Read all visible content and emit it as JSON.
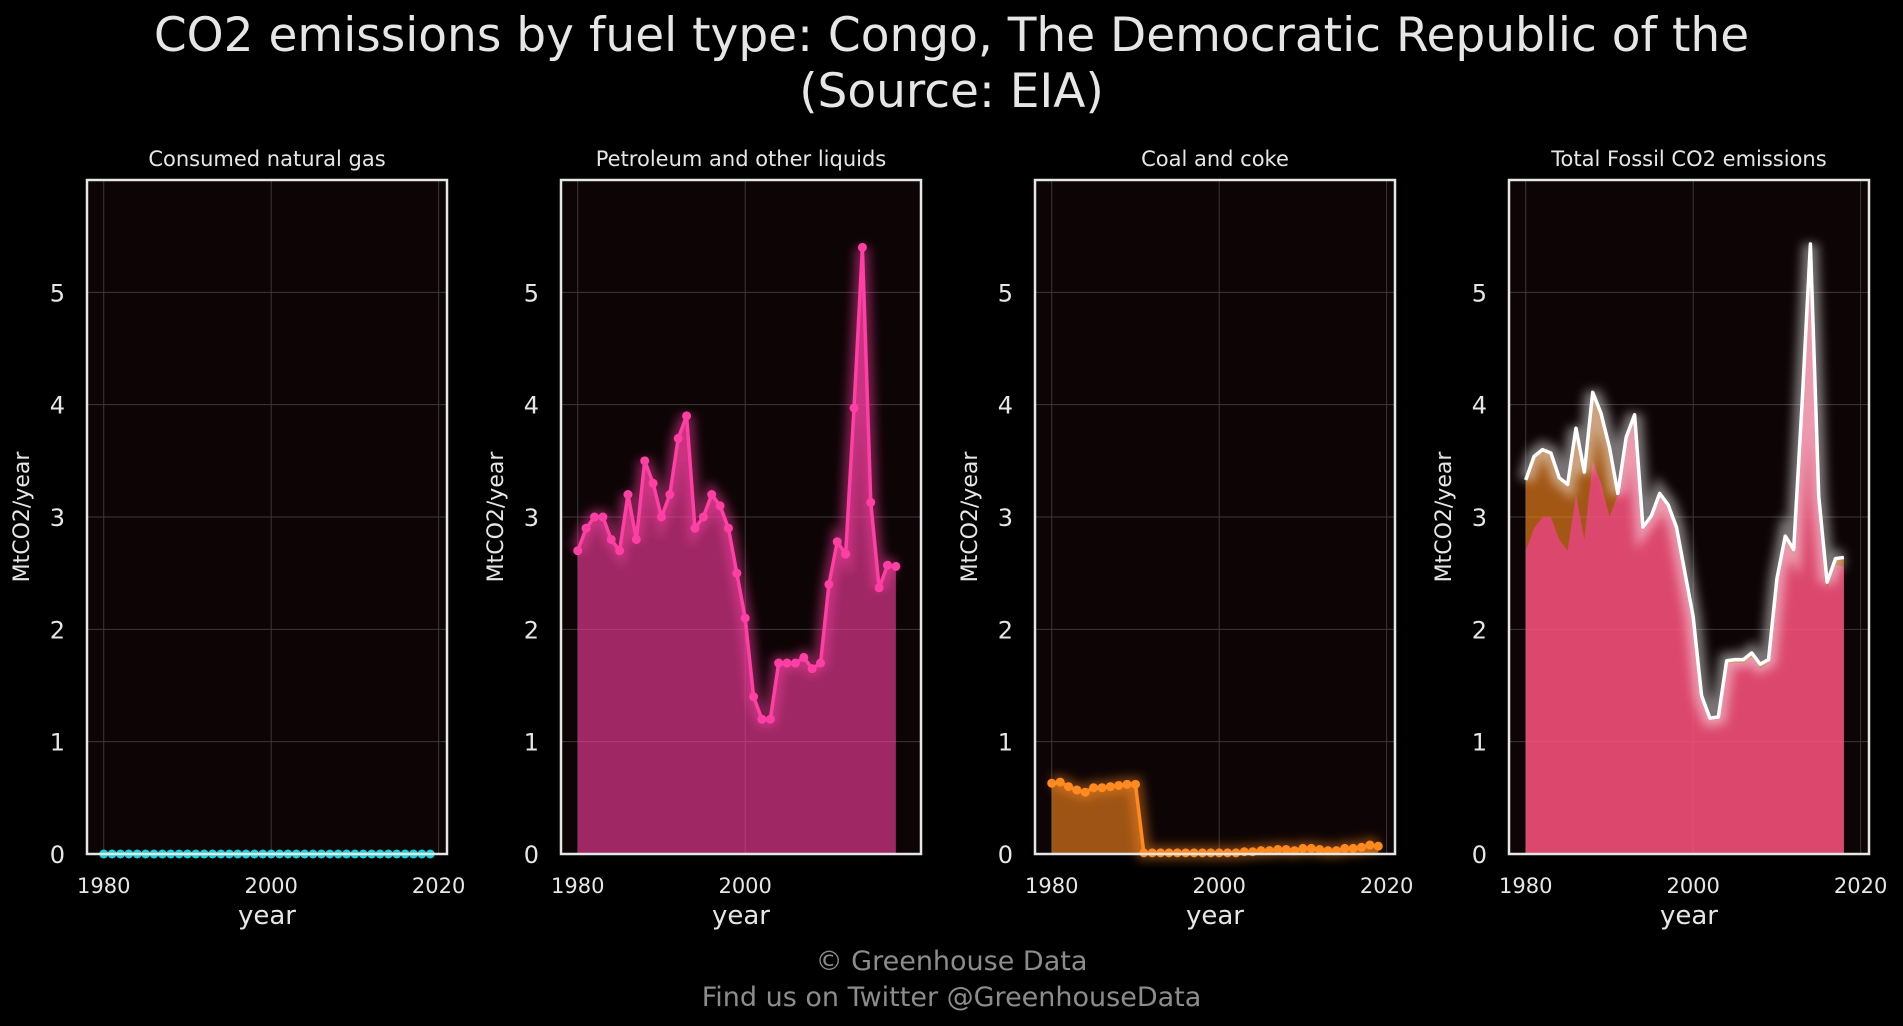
{
  "title_line1": "CO2 emissions by fuel type: Congo, The Democratic Republic of the",
  "title_line2": "(Source: EIA)",
  "footer_line1": "© Greenhouse Data",
  "footer_line2": "Find us on Twitter @GreenhouseData",
  "colors": {
    "background": "#000000",
    "panel_bg": "#0d0405",
    "grid": "#3a3a3a",
    "frame": "#e6e6e6",
    "gas": "#19d3d9",
    "petroleum": "#ff3fa4",
    "coal": "#ff8a1f",
    "total": "#ffffff"
  },
  "chart_data": [
    {
      "type": "line",
      "title": "Consumed natural gas",
      "xlabel": "year",
      "ylabel": "MtCO2/year",
      "xlim": [
        1978,
        2021
      ],
      "ylim": [
        0,
        6
      ],
      "xticks": [
        "1980",
        "2000",
        "2020"
      ],
      "yticks": [
        "0",
        "1",
        "2",
        "3",
        "4",
        "5"
      ],
      "grid": true,
      "series": [
        {
          "color": "#19d3d9",
          "x": [
            1980,
            1981,
            1982,
            1983,
            1984,
            1985,
            1986,
            1987,
            1988,
            1989,
            1990,
            1991,
            1992,
            1993,
            1994,
            1995,
            1996,
            1997,
            1998,
            1999,
            2000,
            2001,
            2002,
            2003,
            2004,
            2005,
            2006,
            2007,
            2008,
            2009,
            2010,
            2011,
            2012,
            2013,
            2014,
            2015,
            2016,
            2017,
            2018,
            2019
          ],
          "values": [
            0,
            0,
            0,
            0,
            0,
            0,
            0,
            0,
            0,
            0,
            0,
            0,
            0,
            0,
            0,
            0,
            0,
            0,
            0,
            0,
            0,
            0,
            0,
            0,
            0,
            0,
            0,
            0,
            0,
            0,
            0,
            0,
            0,
            0,
            0,
            0,
            0,
            0,
            0,
            0
          ]
        }
      ]
    },
    {
      "type": "line",
      "title": "Petroleum and other liquids",
      "xlabel": "year",
      "ylabel": "MtCO2/year",
      "xlim": [
        1978,
        2021
      ],
      "ylim": [
        0,
        6
      ],
      "xticks": [
        "1980",
        "2000"
      ],
      "yticks": [
        "0",
        "1",
        "2",
        "3",
        "4",
        "5"
      ],
      "grid": true,
      "series": [
        {
          "color": "#ff3fa4",
          "x": [
            1980,
            1981,
            1982,
            1983,
            1984,
            1985,
            1986,
            1987,
            1988,
            1989,
            1990,
            1991,
            1992,
            1993,
            1994,
            1995,
            1996,
            1997,
            1998,
            1999,
            2000,
            2001,
            2002,
            2003,
            2004,
            2005,
            2006,
            2007,
            2008,
            2009,
            2010,
            2011,
            2012,
            2013,
            2014,
            2015,
            2016,
            2017,
            2018
          ],
          "values": [
            2.7,
            2.9,
            3.0,
            3.0,
            2.8,
            2.7,
            3.2,
            2.8,
            3.5,
            3.3,
            3.0,
            3.2,
            3.7,
            3.9,
            2.9,
            3.0,
            3.2,
            3.1,
            2.9,
            2.5,
            2.1,
            1.4,
            1.2,
            1.2,
            1.7,
            1.7,
            1.7,
            1.75,
            1.65,
            1.7,
            2.4,
            2.78,
            2.67,
            3.97,
            5.4,
            3.13,
            2.37,
            2.57,
            2.56
          ]
        }
      ]
    },
    {
      "type": "line",
      "title": "Coal and coke",
      "xlabel": "year",
      "ylabel": "MtCO2/year",
      "xlim": [
        1978,
        2021
      ],
      "ylim": [
        0,
        6
      ],
      "xticks": [
        "1980",
        "2000",
        "2020"
      ],
      "yticks": [
        "0",
        "1",
        "2",
        "3",
        "4",
        "5"
      ],
      "grid": true,
      "series": [
        {
          "color": "#ff8a1f",
          "x": [
            1980,
            1981,
            1982,
            1983,
            1984,
            1985,
            1986,
            1987,
            1988,
            1989,
            1990,
            1991,
            1992,
            1993,
            1994,
            1995,
            1996,
            1997,
            1998,
            1999,
            2000,
            2001,
            2002,
            2003,
            2004,
            2005,
            2006,
            2007,
            2008,
            2009,
            2010,
            2011,
            2012,
            2013,
            2014,
            2015,
            2016,
            2017,
            2018,
            2019
          ],
          "values": [
            0.63,
            0.64,
            0.6,
            0.57,
            0.55,
            0.59,
            0.59,
            0.6,
            0.61,
            0.62,
            0.62,
            0.01,
            0.01,
            0.01,
            0.01,
            0.01,
            0.01,
            0.01,
            0.01,
            0.01,
            0.01,
            0.01,
            0.01,
            0.02,
            0.02,
            0.03,
            0.03,
            0.04,
            0.04,
            0.03,
            0.05,
            0.05,
            0.04,
            0.03,
            0.03,
            0.05,
            0.05,
            0.06,
            0.08,
            0.07
          ]
        }
      ]
    },
    {
      "type": "area",
      "title": "Total Fossil CO2 emissions",
      "xlabel": "year",
      "ylabel": "MtCO2/year",
      "xlim": [
        1978,
        2021
      ],
      "ylim": [
        0,
        6
      ],
      "xticks": [
        "1980",
        "2000",
        "2020"
      ],
      "yticks": [
        "0",
        "1",
        "2",
        "3",
        "4",
        "5"
      ],
      "grid": true,
      "stacked": [
        "petroleum",
        "coal"
      ],
      "x": [
        1980,
        1981,
        1982,
        1983,
        1984,
        1985,
        1986,
        1987,
        1988,
        1989,
        1990,
        1991,
        1992,
        1993,
        1994,
        1995,
        1996,
        1997,
        1998,
        1999,
        2000,
        2001,
        2002,
        2003,
        2004,
        2005,
        2006,
        2007,
        2008,
        2009,
        2010,
        2011,
        2012,
        2013,
        2014,
        2015,
        2016,
        2017,
        2018
      ],
      "total_color": "#ffffff",
      "total": [
        3.33,
        3.54,
        3.6,
        3.57,
        3.35,
        3.29,
        3.79,
        3.4,
        4.11,
        3.92,
        3.62,
        3.21,
        3.71,
        3.91,
        2.91,
        3.01,
        3.21,
        3.11,
        2.91,
        2.51,
        2.11,
        1.41,
        1.21,
        1.22,
        1.72,
        1.73,
        1.73,
        1.79,
        1.69,
        1.73,
        2.45,
        2.83,
        2.71,
        4.0,
        5.43,
        3.18,
        2.42,
        2.63,
        2.64
      ]
    }
  ]
}
